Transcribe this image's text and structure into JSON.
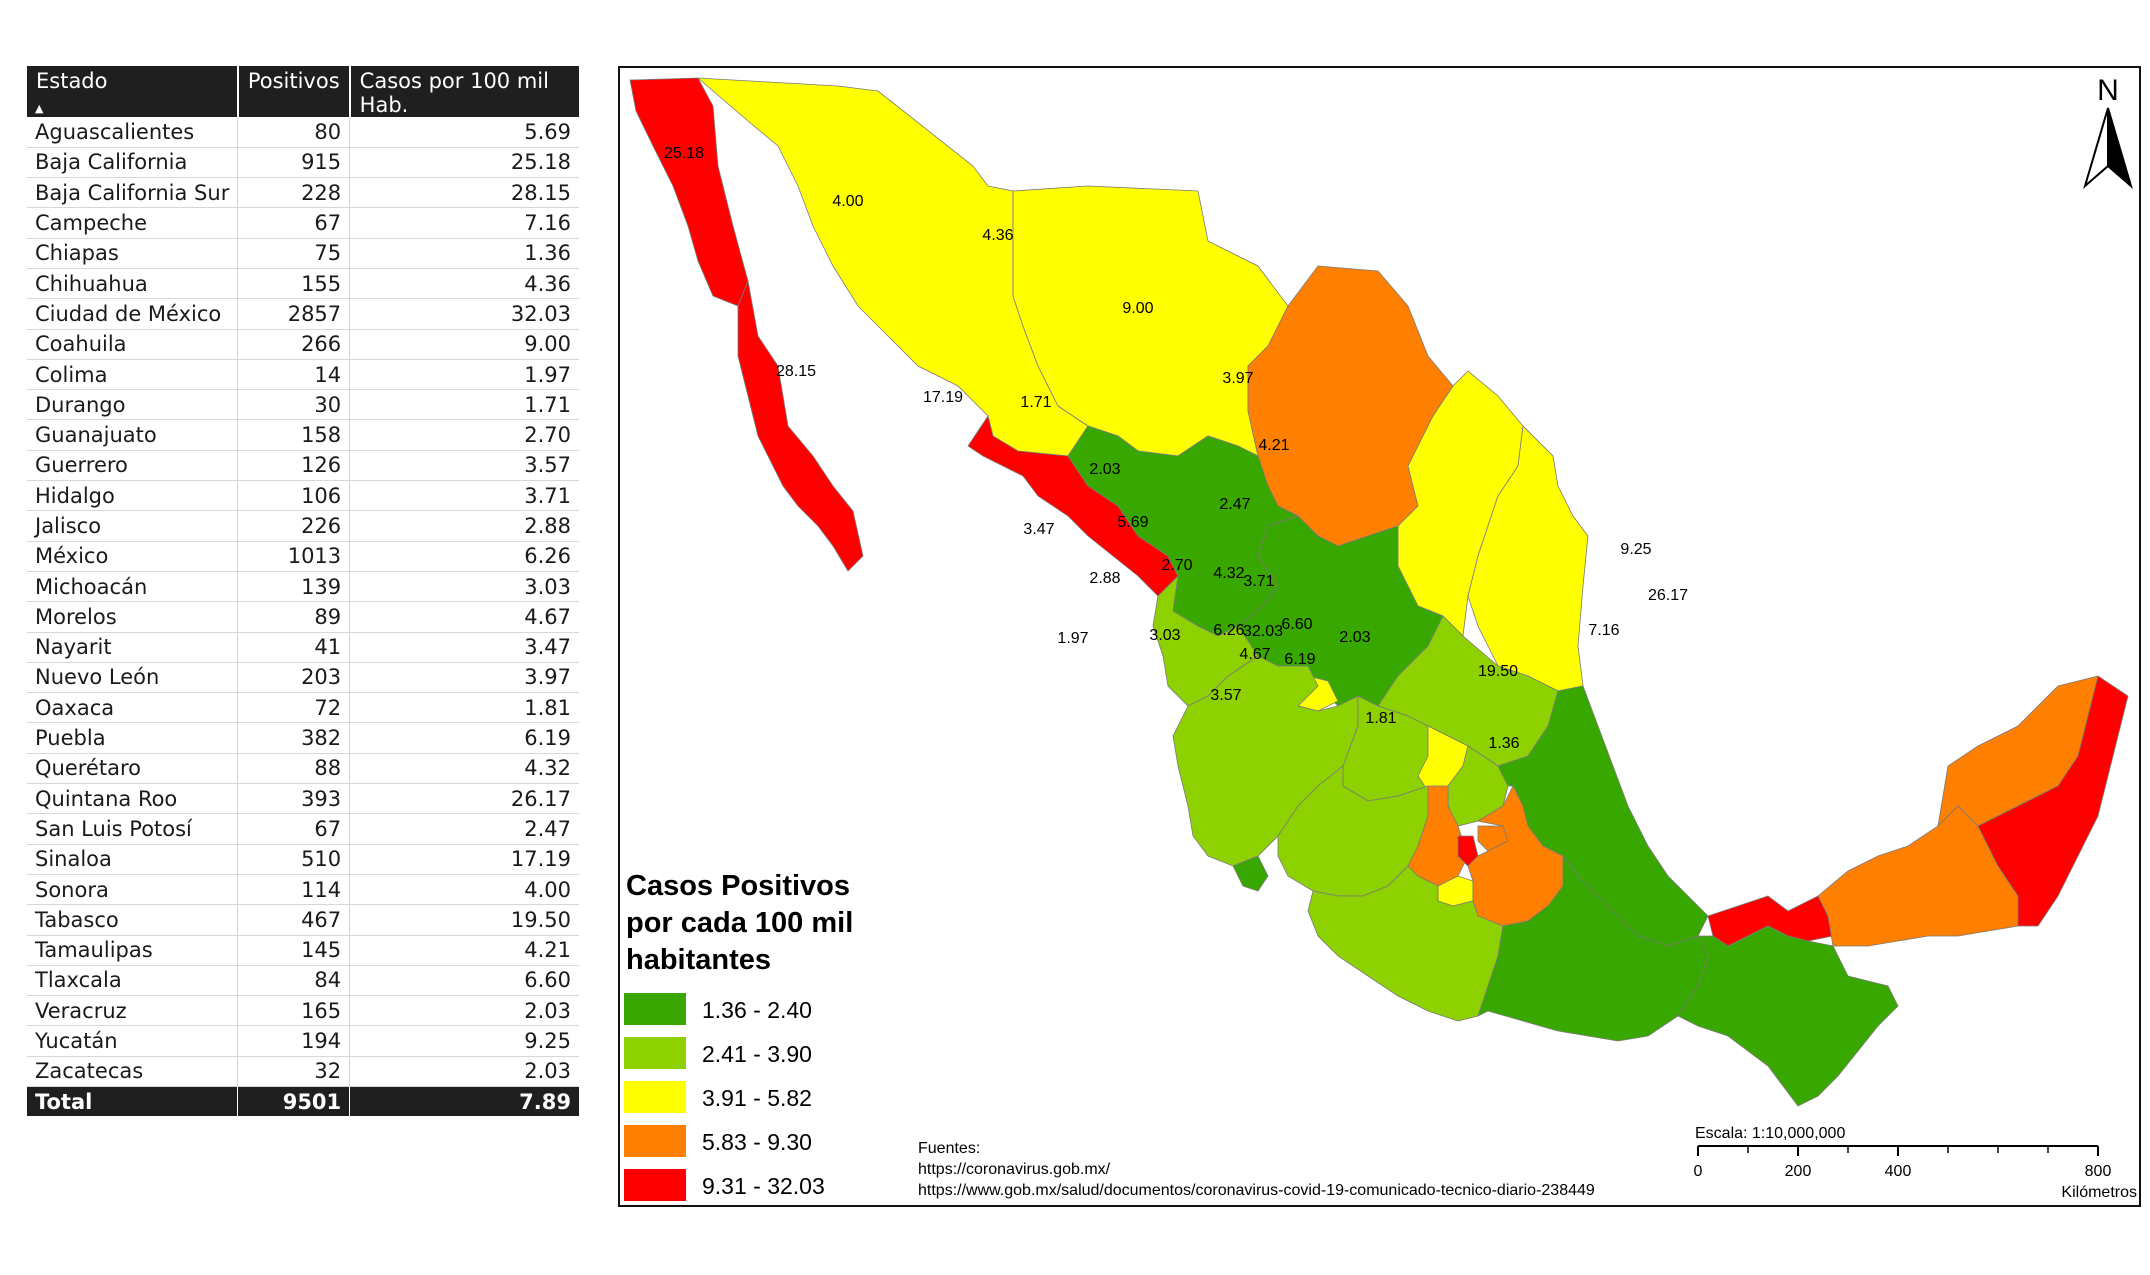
{
  "table": {
    "headers": [
      "Estado",
      "Positivos",
      "Casos por 100 mil Hab."
    ],
    "rows": [
      [
        "Aguascalientes",
        "80",
        "5.69"
      ],
      [
        "Baja California",
        "915",
        "25.18"
      ],
      [
        "Baja California Sur",
        "228",
        "28.15"
      ],
      [
        "Campeche",
        "67",
        "7.16"
      ],
      [
        "Chiapas",
        "75",
        "1.36"
      ],
      [
        "Chihuahua",
        "155",
        "4.36"
      ],
      [
        "Ciudad de México",
        "2857",
        "32.03"
      ],
      [
        "Coahuila",
        "266",
        "9.00"
      ],
      [
        "Colima",
        "14",
        "1.97"
      ],
      [
        "Durango",
        "30",
        "1.71"
      ],
      [
        "Guanajuato",
        "158",
        "2.70"
      ],
      [
        "Guerrero",
        "126",
        "3.57"
      ],
      [
        "Hidalgo",
        "106",
        "3.71"
      ],
      [
        "Jalisco",
        "226",
        "2.88"
      ],
      [
        "México",
        "1013",
        "6.26"
      ],
      [
        "Michoacán",
        "139",
        "3.03"
      ],
      [
        "Morelos",
        "89",
        "4.67"
      ],
      [
        "Nayarit",
        "41",
        "3.47"
      ],
      [
        "Nuevo León",
        "203",
        "3.97"
      ],
      [
        "Oaxaca",
        "72",
        "1.81"
      ],
      [
        "Puebla",
        "382",
        "6.19"
      ],
      [
        "Querétaro",
        "88",
        "4.32"
      ],
      [
        "Quintana Roo",
        "393",
        "26.17"
      ],
      [
        "San Luis Potosí",
        "67",
        "2.47"
      ],
      [
        "Sinaloa",
        "510",
        "17.19"
      ],
      [
        "Sonora",
        "114",
        "4.00"
      ],
      [
        "Tabasco",
        "467",
        "19.50"
      ],
      [
        "Tamaulipas",
        "145",
        "4.21"
      ],
      [
        "Tlaxcala",
        "84",
        "6.60"
      ],
      [
        "Veracruz",
        "165",
        "2.03"
      ],
      [
        "Yucatán",
        "194",
        "9.25"
      ],
      [
        "Zacatecas",
        "32",
        "2.03"
      ]
    ],
    "total": [
      "Total",
      "9501",
      "7.89"
    ]
  },
  "map": {
    "legend_title": [
      "Casos Positivos",
      "por cada 100 mil",
      "habitantes"
    ],
    "legend": [
      {
        "label": "1.36 - 2.40",
        "color": "#38a800"
      },
      {
        "label": "2.41 - 3.90",
        "color": "#8ed100"
      },
      {
        "label": "3.91 - 5.82",
        "color": "#ffff00"
      },
      {
        "label": "5.83 - 9.30",
        "color": "#ff8000"
      },
      {
        "label": "9.31 - 32.03",
        "color": "#ff0000"
      }
    ],
    "north": "N",
    "sources_title": "Fuentes:",
    "sources": [
      "https://coronavirus.gob.mx/",
      "https://www.gob.mx/salud/documentos/coronavirus-covid-19-comunicado-tecnico-diario-238449"
    ],
    "scale_title": "Escala:  1:10,000,000",
    "scale_ticks": [
      "0",
      "200",
      "400",
      "800"
    ],
    "scale_unit": "Kilómetros",
    "state_labels": [
      "25.18",
      "4.00",
      "4.36",
      "9.00",
      "28.15",
      "17.19",
      "1.71",
      "3.97",
      "4.21",
      "2.03",
      "2.47",
      "5.69",
      "3.47",
      "2.88",
      "2.70",
      "4.32",
      "3.71",
      "9.25",
      "26.17",
      "7.16",
      "6.26",
      "32.03",
      "6.60",
      "4.67",
      "6.19",
      "1.97",
      "3.03",
      "2.03",
      "19.50",
      "3.57",
      "1.81",
      "1.36"
    ]
  }
}
